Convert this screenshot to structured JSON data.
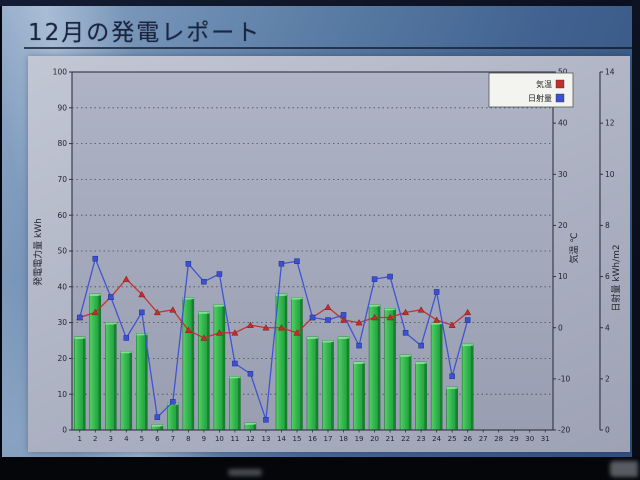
{
  "window": {
    "title": "12月の発電レポート"
  },
  "colors": {
    "bar_green": "#2db04a",
    "bar_green_light": "#84e892",
    "bar_green_dark": "#157d2b",
    "temp_red": "#c52d2d",
    "solar_blue": "#3c50d2",
    "grid": "#4a4e5c",
    "axis": "#30343f",
    "plot_bg_top": "#aeb3c5",
    "plot_bg_bottom": "#999eb1",
    "legend_bg": "#f3f3f0"
  },
  "chart_data": {
    "type": "bar",
    "title": "12月の発電レポート",
    "x": [
      1,
      2,
      3,
      4,
      5,
      6,
      7,
      8,
      9,
      10,
      11,
      12,
      13,
      14,
      15,
      16,
      17,
      18,
      19,
      20,
      21,
      22,
      23,
      24,
      25,
      26,
      27,
      28,
      29,
      30,
      31
    ],
    "series": [
      {
        "name": "発電電力量",
        "type": "bar",
        "axis": "left",
        "color": "#2db04a",
        "values": [
          26,
          38,
          30,
          22,
          27,
          1.5,
          7.5,
          37,
          33,
          35,
          15,
          2,
          0,
          38,
          37,
          26,
          25,
          26,
          19,
          35,
          34,
          21,
          19,
          30,
          12,
          24,
          null,
          null,
          null,
          null,
          null
        ]
      },
      {
        "name": "気温",
        "type": "line",
        "axis": "temp",
        "color": "#c52d2d",
        "marker": "triangle",
        "values": [
          2,
          3,
          6,
          9.5,
          6.5,
          3,
          3.5,
          -0.5,
          -2,
          -1,
          -1,
          0.5,
          0,
          0,
          -1,
          2,
          4,
          1.5,
          1,
          2,
          2,
          3,
          3.5,
          1.5,
          0.5,
          3,
          null,
          null,
          null,
          null,
          null
        ]
      },
      {
        "name": "日射量",
        "type": "line",
        "axis": "solar",
        "color": "#3c50d2",
        "marker": "square",
        "values": [
          4.4,
          6.7,
          5.2,
          3.6,
          4.6,
          0.5,
          1.1,
          6.5,
          5.8,
          6.1,
          2.6,
          2.2,
          0.4,
          6.5,
          6.6,
          4.4,
          4.3,
          4.5,
          3.3,
          5.9,
          6.0,
          3.8,
          3.3,
          5.4,
          2.1,
          4.3,
          null,
          null,
          null,
          null,
          null
        ]
      }
    ],
    "axes": {
      "left": {
        "label": "発電電力量 kWh",
        "min": 0,
        "max": 100,
        "step": 10
      },
      "temp": {
        "label": "気温 ℃",
        "min": -20,
        "max": 50,
        "step": 10
      },
      "solar": {
        "label": "日射量 kWh/m2",
        "min": 0,
        "max": 14,
        "step": 2
      }
    },
    "legend": [
      {
        "label": "気温",
        "color": "#c52d2d"
      },
      {
        "label": "日射量",
        "color": "#3c50d2"
      }
    ],
    "grid": true,
    "legend_position": "top-right"
  }
}
